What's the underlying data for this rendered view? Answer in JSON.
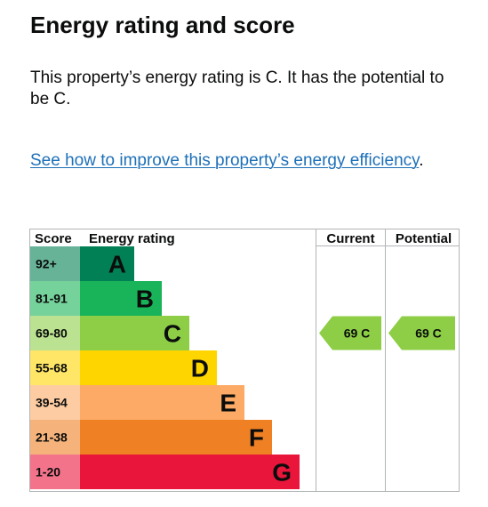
{
  "heading": "Energy rating and score",
  "summary": "This property’s energy rating is C. It has the potential to be C.",
  "improve_link": {
    "text": "See how to improve this property’s energy efficiency",
    "trailing": "."
  },
  "table": {
    "headers": {
      "score": "Score",
      "rating": "Energy rating",
      "current": "Current",
      "potential": "Potential"
    },
    "bands": [
      {
        "score": "92+",
        "letter": "A",
        "band_color": "#008054",
        "score_color": "#66b398"
      },
      {
        "score": "81-91",
        "letter": "B",
        "band_color": "#19b459",
        "score_color": "#75d29b"
      },
      {
        "score": "69-80",
        "letter": "C",
        "band_color": "#8dce46",
        "score_color": "#bbe290"
      },
      {
        "score": "55-68",
        "letter": "D",
        "band_color": "#ffd500",
        "score_color": "#ffe666"
      },
      {
        "score": "39-54",
        "letter": "E",
        "band_color": "#fcaa65",
        "score_color": "#fdcca3"
      },
      {
        "score": "21-38",
        "letter": "F",
        "band_color": "#ef8023",
        "score_color": "#f5b37b"
      },
      {
        "score": "1-20",
        "letter": "G",
        "band_color": "#e9153b",
        "score_color": "#f2738a"
      }
    ],
    "current": {
      "label": "69 C",
      "band_index": 2,
      "color": "#8dce46"
    },
    "potential": {
      "label": "69 C",
      "band_index": 2,
      "color": "#8dce46"
    }
  },
  "colors": {
    "link": "#1d70b8",
    "grid_line": "#b1b4b6",
    "text": "#0b0c0c"
  }
}
